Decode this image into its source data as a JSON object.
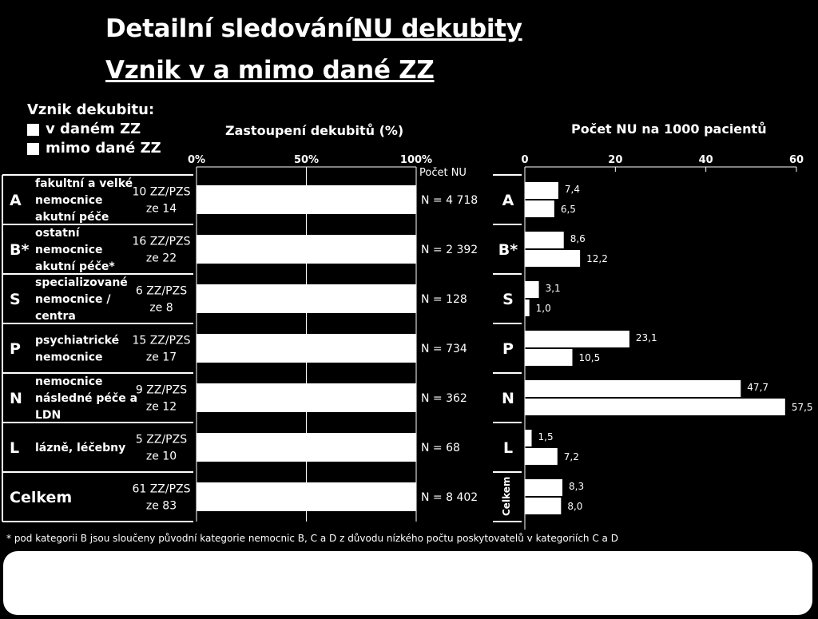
{
  "title_line1_pre": "Detailní sledování ",
  "title_line1_u": "NU dekubity",
  "title_line2": "Vznik v a mimo dané ZZ",
  "legend": {
    "heading": "Vznik dekubitu:",
    "items": [
      "v daném ZZ",
      "mimo dané ZZ"
    ]
  },
  "colors": {
    "background": "#000000",
    "bar": "#ffffff",
    "row_band": "#ffffff"
  },
  "footnote": "* pod kategorii B jsou sloučeny původní kategorie nemocnic B, C a D z důvodu nízkého počtu poskytovatelů v kategoriích C a D",
  "chart_data": [
    {
      "type": "bar",
      "orientation": "horizontal",
      "stacked": true,
      "title": "Zastoupení dekubitů (%)",
      "xlim": [
        0,
        100
      ],
      "ticks": [
        "0%",
        "50%",
        "100%"
      ],
      "side_header": "Počet NU",
      "rows": [
        {
          "code": "A",
          "desc": [
            "fakultní a velké",
            "nemocnice",
            "akutní péče"
          ],
          "zz": [
            "10 ZZ/PZS",
            "ze 14"
          ],
          "n": "N = 4 718"
        },
        {
          "code": "B*",
          "desc": [
            "ostatní",
            "nemocnice",
            "akutní péče*"
          ],
          "zz": [
            "16 ZZ/PZS",
            "ze 22"
          ],
          "n": "N = 2 392"
        },
        {
          "code": "S",
          "desc": [
            "specializované",
            "nemocnice /",
            "centra"
          ],
          "zz": [
            "6 ZZ/PZS",
            "ze 8"
          ],
          "n": "N = 128"
        },
        {
          "code": "P",
          "desc": [
            "psychiatrické",
            "nemocnice"
          ],
          "zz": [
            "15 ZZ/PZS",
            "ze 17"
          ],
          "n": "N = 734"
        },
        {
          "code": "N",
          "desc": [
            "nemocnice",
            "následné péče a",
            "LDN"
          ],
          "zz": [
            "9 ZZ/PZS",
            "ze 12"
          ],
          "n": "N = 362"
        },
        {
          "code": "L",
          "desc": [
            "lázně, léčebny"
          ],
          "zz": [
            "5 ZZ/PZS",
            "ze 10"
          ],
          "n": "N = 68"
        },
        {
          "code": "Celkem",
          "desc": [],
          "zz": [
            "61 ZZ/PZS",
            "ze 83"
          ],
          "n": "N = 8 402"
        }
      ],
      "series": [
        {
          "name": "v daném ZZ",
          "values": [
            100,
            100,
            100,
            100,
            100,
            100,
            100
          ]
        }
      ]
    },
    {
      "type": "bar",
      "orientation": "horizontal",
      "title": "Počet NU na 1000 pacientů",
      "xlim": [
        0,
        60
      ],
      "ticks": [
        "0",
        "20",
        "40",
        "60"
      ],
      "categories": [
        "A",
        "B*",
        "S",
        "P",
        "N",
        "L",
        "Celkem"
      ],
      "series": [
        {
          "name": "v daném ZZ",
          "values": [
            7.4,
            8.6,
            3.1,
            23.1,
            47.7,
            1.5,
            8.3
          ],
          "labels": [
            "7,4",
            "8,6",
            "3,1",
            "23,1",
            "47,7",
            "1,5",
            "8,3"
          ]
        },
        {
          "name": "mimo dané ZZ",
          "values": [
            6.5,
            12.2,
            1.0,
            10.5,
            57.5,
            7.2,
            8.0
          ],
          "labels": [
            "6,5",
            "12,2",
            "1,0",
            "10,5",
            "57,5",
            "7,2",
            "8,0"
          ]
        }
      ]
    }
  ]
}
